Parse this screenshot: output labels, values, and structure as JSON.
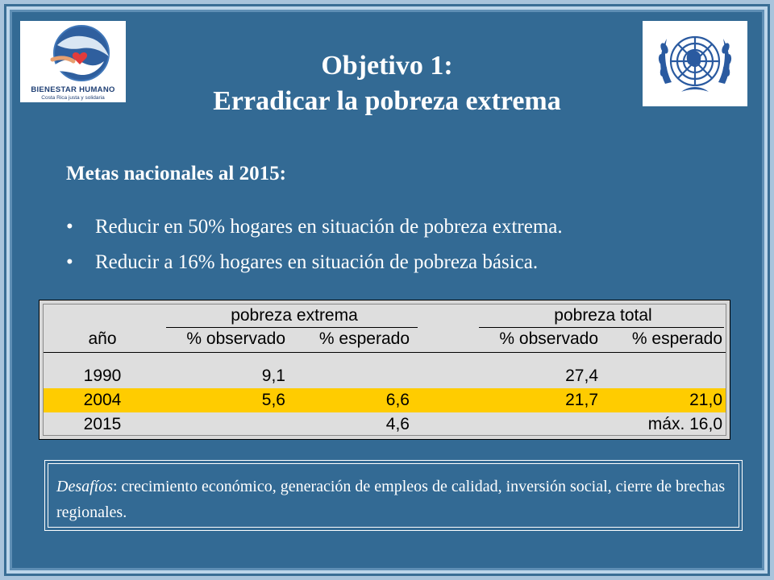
{
  "colors": {
    "slide_bg": "#336a94",
    "frame_light": "#a9c4dc",
    "title_text": "#ffffff",
    "table_bg": "#d9d9d9",
    "highlight_row": "#ffcc00"
  },
  "logos": {
    "left": {
      "icon": "hands-heart-logo",
      "name": "BIENESTAR HUMANO",
      "tagline": "Costa Rica justa y solidaria"
    },
    "right": {
      "icon": "un-emblem-logo"
    }
  },
  "title": {
    "line1": "Objetivo 1:",
    "line2": "Erradicar la pobreza extrema"
  },
  "goals": {
    "heading": "Metas nacionales al 2015:",
    "bullet_symbol": "•",
    "items": [
      "Reducir en 50% hogares en situación de pobreza extrema.",
      "Reducir a 16% hogares en situación de pobreza básica."
    ]
  },
  "table": {
    "group_headers": [
      "pobreza extrema",
      "pobreza total"
    ],
    "columns": [
      "año",
      "% observado",
      "% esperado",
      "% observado",
      "% esperado"
    ],
    "rows": [
      {
        "year": "1990",
        "pe_obs": "9,1",
        "pe_esp": "",
        "pt_obs": "27,4",
        "pt_esp": "",
        "highlight": false
      },
      {
        "year": "2004",
        "pe_obs": "5,6",
        "pe_esp": "6,6",
        "pt_obs": "21,7",
        "pt_esp": "21,0",
        "highlight": true
      },
      {
        "year": "2015",
        "pe_obs": "",
        "pe_esp": "4,6",
        "pt_obs": "",
        "pt_esp": "máx. 16,0",
        "highlight": false
      }
    ]
  },
  "challenges": {
    "label": "Desafíos",
    "text": ": crecimiento económico, generación de empleos de calidad, inversión social, cierre de brechas regionales."
  }
}
